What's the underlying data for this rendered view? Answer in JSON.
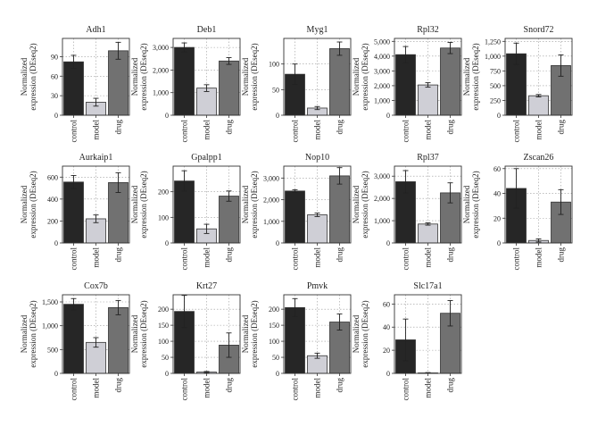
{
  "chart_data": [
    {
      "type": "bar",
      "title": "Adh1",
      "ylabel": "Normalized expression (DEseq2)",
      "categories": [
        "control",
        "model",
        "drug"
      ],
      "values": [
        82,
        20,
        99
      ],
      "errors": [
        10,
        6,
        13
      ],
      "ylim": [
        0,
        118
      ],
      "yticks": [
        0,
        30,
        60,
        90
      ],
      "ytick_labels": [
        "0",
        "30",
        "60",
        "90"
      ],
      "colors": [
        "#262626",
        "#cfcfd6",
        "#717171"
      ],
      "grid": true
    },
    {
      "type": "bar",
      "title": "Deb1",
      "ylabel": "Normalized expression (DEseq2)",
      "categories": [
        "control",
        "model",
        "drug"
      ],
      "values": [
        3000,
        1200,
        2400
      ],
      "errors": [
        200,
        150,
        150
      ],
      "ylim": [
        0,
        3400
      ],
      "yticks": [
        0,
        1000,
        2000,
        3000
      ],
      "ytick_labels": [
        "0",
        "1,000",
        "2,000",
        "3,000"
      ],
      "colors": [
        "#262626",
        "#cfcfd6",
        "#717171"
      ],
      "grid": true
    },
    {
      "type": "bar",
      "title": "Myg1",
      "ylabel": "Normalized expression (DEseq2)",
      "categories": [
        "control",
        "model",
        "drug"
      ],
      "values": [
        80,
        14,
        130
      ],
      "errors": [
        20,
        3,
        13
      ],
      "ylim": [
        0,
        150
      ],
      "yticks": [
        0,
        50,
        100
      ],
      "ytick_labels": [
        "0",
        "50",
        "100"
      ],
      "colors": [
        "#262626",
        "#cfcfd6",
        "#717171"
      ],
      "grid": true
    },
    {
      "type": "bar",
      "title": "Rpl32",
      "ylabel": "Normalized expression (DEseq2)",
      "categories": [
        "control",
        "model",
        "drug"
      ],
      "values": [
        4100,
        2050,
        4550
      ],
      "errors": [
        550,
        150,
        380
      ],
      "ylim": [
        0,
        5200
      ],
      "yticks": [
        0,
        1000,
        2000,
        3000,
        4000,
        5000
      ],
      "ytick_labels": [
        "0",
        "1,000",
        "2,000",
        "3,000",
        "4,000",
        "5,000"
      ],
      "colors": [
        "#262626",
        "#cfcfd6",
        "#717171"
      ],
      "grid": true
    },
    {
      "type": "bar",
      "title": "Snord72",
      "ylabel": "Normalized expression (DEseq2)",
      "categories": [
        "control",
        "model",
        "drug"
      ],
      "values": [
        1040,
        330,
        840
      ],
      "errors": [
        180,
        20,
        180
      ],
      "ylim": [
        0,
        1300
      ],
      "yticks": [
        0,
        250,
        500,
        750,
        1000,
        1250
      ],
      "ytick_labels": [
        "0",
        "250",
        "500",
        "750",
        "1,000",
        "1,250"
      ],
      "colors": [
        "#262626",
        "#cfcfd6",
        "#717171"
      ],
      "grid": true
    },
    {
      "type": "bar",
      "title": "Aurkaip1",
      "ylabel": "Normalized expression (DEseq2)",
      "categories": [
        "control",
        "model",
        "drug"
      ],
      "values": [
        555,
        220,
        550
      ],
      "errors": [
        60,
        35,
        90
      ],
      "ylim": [
        0,
        700
      ],
      "yticks": [
        0,
        200,
        400,
        600
      ],
      "ytick_labels": [
        "0",
        "200",
        "400",
        "600"
      ],
      "colors": [
        "#262626",
        "#cfcfd6",
        "#717171"
      ],
      "grid": true
    },
    {
      "type": "bar",
      "title": "Gpalpp1",
      "ylabel": "Normalized expression (DEseq2)",
      "categories": [
        "control",
        "model",
        "drug"
      ],
      "values": [
        242,
        55,
        183
      ],
      "errors": [
        40,
        18,
        20
      ],
      "ylim": [
        0,
        300
      ],
      "yticks": [
        0,
        100,
        200
      ],
      "ytick_labels": [
        "0",
        "100",
        "200"
      ],
      "colors": [
        "#262626",
        "#cfcfd6",
        "#717171"
      ],
      "grid": true
    },
    {
      "type": "bar",
      "title": "Nop10",
      "ylabel": "Normalized expression (DEseq2)",
      "categories": [
        "control",
        "model",
        "drug"
      ],
      "values": [
        2400,
        1300,
        3100
      ],
      "errors": [
        60,
        80,
        380
      ],
      "ylim": [
        0,
        3550
      ],
      "yticks": [
        0,
        1000,
        2000,
        3000
      ],
      "ytick_labels": [
        "0",
        "1,000",
        "2,000",
        "3,000"
      ],
      "colors": [
        "#262626",
        "#cfcfd6",
        "#717171"
      ],
      "grid": true
    },
    {
      "type": "bar",
      "title": "Rpl37",
      "ylabel": "Normalized expression (DEseq2)",
      "categories": [
        "control",
        "model",
        "drug"
      ],
      "values": [
        2750,
        850,
        2250
      ],
      "errors": [
        500,
        50,
        450
      ],
      "ylim": [
        0,
        3450
      ],
      "yticks": [
        0,
        1000,
        2000,
        3000
      ],
      "ytick_labels": [
        "0",
        "1,000",
        "2,000",
        "3,000"
      ],
      "colors": [
        "#262626",
        "#cfcfd6",
        "#717171"
      ],
      "grid": true
    },
    {
      "type": "bar",
      "title": "Zscan26",
      "ylabel": "Normalized expression (DEseq2)",
      "categories": [
        "control",
        "model",
        "drug"
      ],
      "values": [
        44,
        2,
        33
      ],
      "errors": [
        16,
        1.2,
        10
      ],
      "ylim": [
        0,
        62
      ],
      "yticks": [
        0,
        20,
        40,
        60
      ],
      "ytick_labels": [
        "0",
        "20",
        "40",
        "60"
      ],
      "colors": [
        "#262626",
        "#cfcfd6",
        "#717171"
      ],
      "grid": true
    },
    {
      "type": "bar",
      "title": "Cox7b",
      "ylabel": "Normalized expression (DEseq2)",
      "categories": [
        "control",
        "model",
        "drug"
      ],
      "values": [
        1450,
        650,
        1380
      ],
      "errors": [
        120,
        100,
        150
      ],
      "ylim": [
        0,
        1650
      ],
      "yticks": [
        0,
        500,
        1000,
        1500
      ],
      "ytick_labels": [
        "0",
        "500",
        "1,000",
        "1,500"
      ],
      "colors": [
        "#262626",
        "#cfcfd6",
        "#717171"
      ],
      "grid": true
    },
    {
      "type": "bar",
      "title": "Krt27",
      "ylabel": "Normalized expression (DEseq2)",
      "categories": [
        "control",
        "model",
        "drug"
      ],
      "values": [
        193,
        4,
        88
      ],
      "errors": [
        50,
        2,
        38
      ],
      "ylim": [
        0,
        245
      ],
      "yticks": [
        0,
        50,
        100,
        150,
        200
      ],
      "ytick_labels": [
        "0",
        "50",
        "100",
        "150",
        "200"
      ],
      "colors": [
        "#262626",
        "#cfcfd6",
        "#717171"
      ],
      "grid": true
    },
    {
      "type": "bar",
      "title": "Pmvk",
      "ylabel": "Normalized expression (DEseq2)",
      "categories": [
        "control",
        "model",
        "drug"
      ],
      "values": [
        205,
        55,
        160
      ],
      "errors": [
        28,
        8,
        25
      ],
      "ylim": [
        0,
        245
      ],
      "yticks": [
        0,
        50,
        100,
        150,
        200
      ],
      "ytick_labels": [
        "0",
        "50",
        "100",
        "150",
        "200"
      ],
      "colors": [
        "#262626",
        "#cfcfd6",
        "#717171"
      ],
      "grid": true
    },
    {
      "type": "bar",
      "title": "Slc17a1",
      "ylabel": "Normalized expression (DEseq2)",
      "categories": [
        "control",
        "model",
        "drug"
      ],
      "values": [
        29,
        0.4,
        52
      ],
      "errors": [
        18,
        0.3,
        11
      ],
      "ylim": [
        0,
        68
      ],
      "yticks": [
        0,
        20,
        40,
        60
      ],
      "ytick_labels": [
        "0",
        "20",
        "40",
        "60"
      ],
      "colors": [
        "#262626",
        "#cfcfd6",
        "#717171"
      ],
      "grid": true
    }
  ]
}
